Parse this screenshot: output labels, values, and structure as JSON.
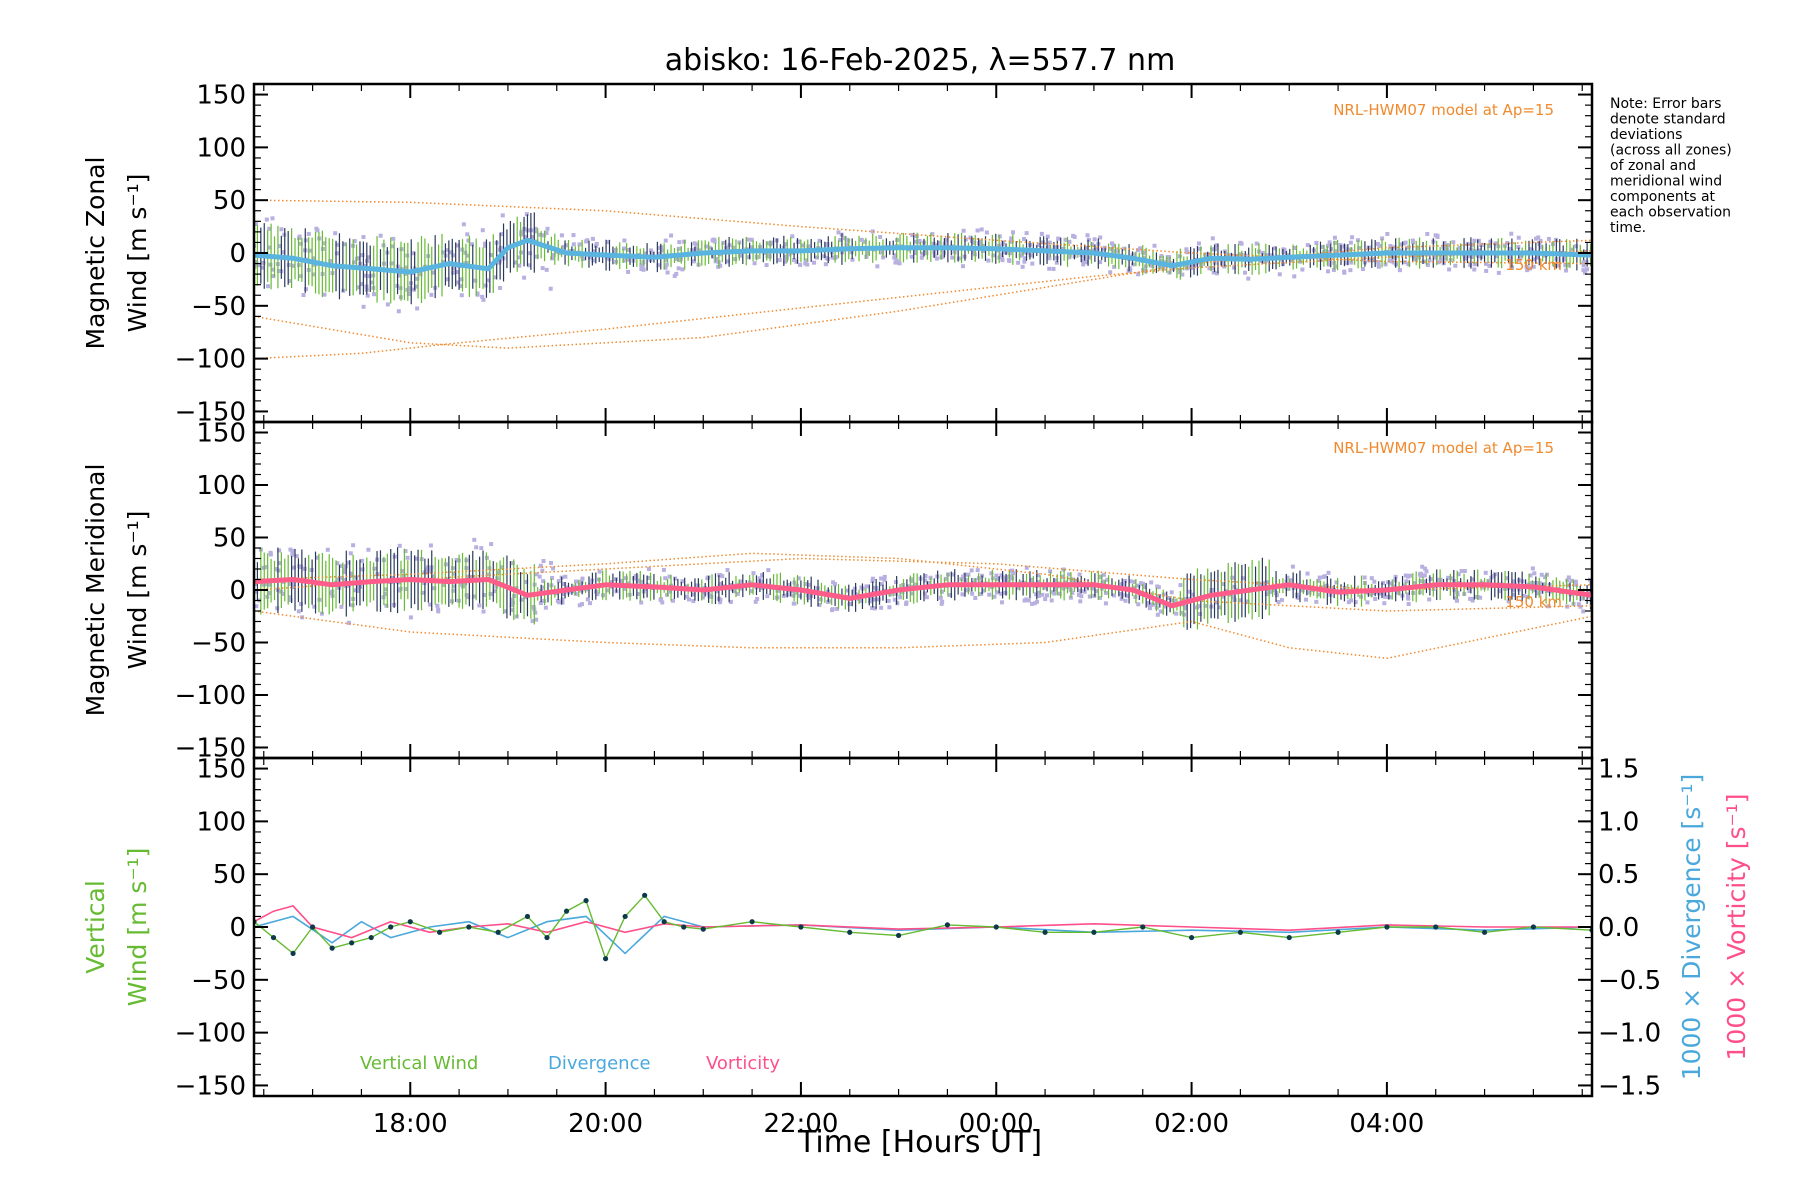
{
  "chart_data": {
    "title": "abisko: 16-Feb-2025, λ=557.7 nm",
    "note_lines": [
      "Note: Error bars",
      "denote standard",
      "deviations",
      "(across all zones)",
      "of zonal and",
      "meridional wind",
      "components at",
      "each observation",
      "time."
    ],
    "x_axis": {
      "label": "Time [Hours UT]",
      "range_hours": [
        16.4,
        30.1
      ],
      "tick_labels": [
        "18:00",
        "20:00",
        "22:00",
        "00:00",
        "02:00",
        "04:00"
      ],
      "tick_hours": [
        18,
        20,
        22,
        24,
        26,
        28
      ]
    },
    "colors": {
      "zonal_mean": "#5ab4e0",
      "meridional_mean": "#ff5c8a",
      "model": "#f08a2e",
      "zone_points": "#b8b0e0",
      "error_bars": "#2a3a5a",
      "vertical": "#66bb33",
      "divergence": "#4aa8dc",
      "vorticity": "#ff4f8a"
    },
    "panels": [
      {
        "type": "line",
        "ylabel_lines": [
          "Magnetic Zonal",
          "Wind [m s⁻¹]"
        ],
        "ylim": [
          -160,
          160
        ],
        "tick_labels": [
          "150",
          "100",
          "50",
          "0",
          "−50",
          "−100",
          "−150"
        ],
        "tick_values": [
          150,
          100,
          50,
          0,
          -50,
          -100,
          -150
        ],
        "model_label": "NRL-HWM07 model at Ap=15",
        "model_height_label": "150 km",
        "series": [
          {
            "role": "mean",
            "x": [
              16.4,
              16.8,
              17.2,
              17.6,
              18.0,
              18.4,
              18.8,
              19.0,
              19.2,
              19.6,
              20.0,
              20.5,
              21.0,
              21.5,
              22.0,
              22.5,
              23.0,
              23.5,
              24.0,
              24.5,
              25.0,
              25.4,
              25.8,
              26.2,
              26.6,
              27.0,
              27.5,
              28.0,
              28.5,
              29.0,
              29.5,
              30.1
            ],
            "y": [
              -2,
              -5,
              -12,
              -15,
              -18,
              -10,
              -15,
              5,
              12,
              0,
              -2,
              -4,
              0,
              2,
              2,
              4,
              5,
              5,
              4,
              2,
              0,
              -5,
              -12,
              -5,
              -6,
              -4,
              -2,
              0,
              0,
              0,
              0,
              -2
            ]
          },
          {
            "role": "model",
            "x": [
              16.4,
              17.5,
              18.5,
              20.0,
              22.0,
              24.0,
              25.0,
              26.0,
              28.0,
              30.1
            ],
            "y": [
              -100,
              -95,
              -85,
              -72,
              -52,
              -32,
              -22,
              -14,
              -4,
              2
            ]
          },
          {
            "role": "model",
            "x": [
              16.4,
              18.0,
              19.0,
              21.0,
              23.0,
              25.0,
              26.0,
              28.0,
              30.1
            ],
            "y": [
              -60,
              -85,
              -90,
              -80,
              -55,
              -25,
              -10,
              5,
              12
            ]
          },
          {
            "role": "model",
            "x": [
              16.4,
              18.0,
              20.0,
              22.0,
              24.0,
              26.0,
              28.0,
              30.1
            ],
            "y": [
              50,
              48,
              40,
              25,
              12,
              0,
              -8,
              -10
            ]
          }
        ]
      },
      {
        "type": "line",
        "ylabel_lines": [
          "Magnetic Meridional",
          "Wind [m s⁻¹]"
        ],
        "ylim": [
          -160,
          160
        ],
        "tick_labels": [
          "150",
          "100",
          "50",
          "0",
          "−50",
          "−100",
          "−150"
        ],
        "tick_values": [
          150,
          100,
          50,
          0,
          -50,
          -100,
          -150
        ],
        "model_label": "NRL-HWM07 model at Ap=15",
        "model_height_label": "150 km",
        "series": [
          {
            "role": "mean",
            "x": [
              16.4,
              16.8,
              17.2,
              17.6,
              18.0,
              18.4,
              18.8,
              19.2,
              19.6,
              20.0,
              20.5,
              21.0,
              21.5,
              22.0,
              22.5,
              23.0,
              23.5,
              24.0,
              24.5,
              25.0,
              25.4,
              25.8,
              26.2,
              26.6,
              27.0,
              27.5,
              28.0,
              28.5,
              29.0,
              29.5,
              30.1
            ],
            "y": [
              8,
              10,
              5,
              8,
              10,
              8,
              10,
              -5,
              0,
              5,
              3,
              0,
              5,
              0,
              -8,
              0,
              5,
              5,
              5,
              5,
              0,
              -15,
              -5,
              0,
              5,
              -2,
              0,
              5,
              5,
              3,
              -5
            ]
          },
          {
            "role": "model",
            "x": [
              16.4,
              18.0,
              20.0,
              21.5,
              23.0,
              24.5,
              26.0,
              27.0,
              28.0,
              30.1
            ],
            "y": [
              -20,
              -40,
              -50,
              -55,
              -55,
              -50,
              -30,
              -55,
              -65,
              -25
            ]
          },
          {
            "role": "model",
            "x": [
              16.4,
              18.0,
              20.0,
              21.5,
              23.0,
              24.5,
              26.0,
              28.0,
              30.1
            ],
            "y": [
              10,
              15,
              25,
              35,
              30,
              15,
              -10,
              -20,
              -15
            ]
          },
          {
            "role": "model",
            "x": [
              16.4,
              18.0,
              20.0,
              22.0,
              24.0,
              26.0,
              28.0,
              30.1
            ],
            "y": [
              0,
              10,
              20,
              30,
              25,
              10,
              0,
              5
            ]
          }
        ]
      },
      {
        "type": "line",
        "ylabel_lines": [
          "Vertical",
          "Wind [m s⁻¹]"
        ],
        "ylim": [
          -160,
          160
        ],
        "tick_labels": [
          "150",
          "100",
          "50",
          "0",
          "−50",
          "−100",
          "−150"
        ],
        "tick_values": [
          150,
          100,
          50,
          0,
          -50,
          -100,
          -150
        ],
        "right_axis": {
          "ylim": [
            -1.6,
            1.6
          ],
          "tick_labels": [
            "1.5",
            "1.0",
            "0.5",
            "0.0",
            "−0.5",
            "−1.0",
            "−1.5"
          ],
          "tick_values": [
            1.5,
            1.0,
            0.5,
            0.0,
            -0.5,
            -1.0,
            -1.5
          ],
          "label_divergence": "1000 × Divergence [s⁻¹]",
          "label_vorticity": "1000 × Vorticity [s⁻¹]"
        },
        "legend": [
          "Vertical Wind",
          "Divergence",
          "Vorticity"
        ],
        "series": [
          {
            "name": "Vertical Wind",
            "x": [
              16.4,
              16.6,
              16.8,
              17.0,
              17.2,
              17.4,
              17.6,
              17.8,
              18.0,
              18.3,
              18.6,
              18.9,
              19.2,
              19.4,
              19.6,
              19.8,
              20.0,
              20.2,
              20.4,
              20.6,
              20.8,
              21.0,
              21.5,
              22.0,
              22.5,
              23.0,
              23.5,
              24.0,
              24.5,
              25.0,
              25.5,
              26.0,
              26.5,
              27.0,
              27.5,
              28.0,
              28.5,
              29.0,
              29.5,
              30.1
            ],
            "y": [
              5,
              -10,
              -25,
              0,
              -20,
              -15,
              -10,
              0,
              5,
              -5,
              0,
              -5,
              10,
              -10,
              15,
              25,
              -30,
              10,
              30,
              5,
              0,
              -2,
              5,
              0,
              -5,
              -8,
              2,
              0,
              -5,
              -5,
              0,
              -10,
              -5,
              -10,
              -5,
              0,
              0,
              -5,
              0,
              -3
            ]
          },
          {
            "name": "Divergence",
            "x": [
              16.4,
              16.8,
              17.2,
              17.5,
              17.8,
              18.2,
              18.6,
              19.0,
              19.4,
              19.8,
              20.2,
              20.6,
              21.0,
              22.0,
              23.0,
              24.0,
              25.0,
              26.0,
              27.0,
              28.0,
              29.0,
              30.1
            ],
            "y": [
              0.0,
              0.1,
              -0.15,
              0.05,
              -0.1,
              0.0,
              0.05,
              -0.1,
              0.05,
              0.1,
              -0.25,
              0.1,
              0.0,
              0.02,
              -0.03,
              0.0,
              -0.05,
              -0.03,
              -0.05,
              0.0,
              -0.03,
              0.0
            ]
          },
          {
            "name": "Vorticity",
            "x": [
              16.4,
              16.6,
              16.8,
              17.0,
              17.4,
              17.8,
              18.2,
              18.6,
              19.0,
              19.4,
              19.8,
              20.2,
              20.6,
              21.0,
              22.0,
              23.0,
              24.0,
              25.0,
              26.0,
              27.0,
              28.0,
              29.0,
              30.1
            ],
            "y": [
              0.05,
              0.15,
              0.2,
              0.0,
              -0.1,
              0.05,
              -0.05,
              0.0,
              0.03,
              -0.05,
              0.05,
              -0.05,
              0.03,
              0.0,
              0.02,
              -0.02,
              0.0,
              0.03,
              0.0,
              -0.03,
              0.02,
              0.0,
              0.0
            ]
          }
        ]
      }
    ]
  }
}
